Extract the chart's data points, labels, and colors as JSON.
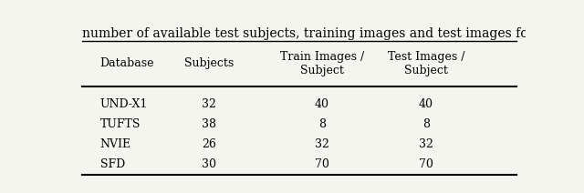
{
  "title": "number of available test subjects, training images and test images fo",
  "columns": [
    "Database",
    "Subjects",
    "Train Images /\nSubject",
    "Test Images /\nSubject"
  ],
  "rows": [
    [
      "UND-X1",
      "32",
      "40",
      "40"
    ],
    [
      "TUFTS",
      "38",
      "8",
      "8"
    ],
    [
      "NVIE",
      "26",
      "32",
      "32"
    ],
    [
      "SFD",
      "30",
      "70",
      "70"
    ]
  ],
  "background_color": "#f5f5f0",
  "font_size": 9
}
